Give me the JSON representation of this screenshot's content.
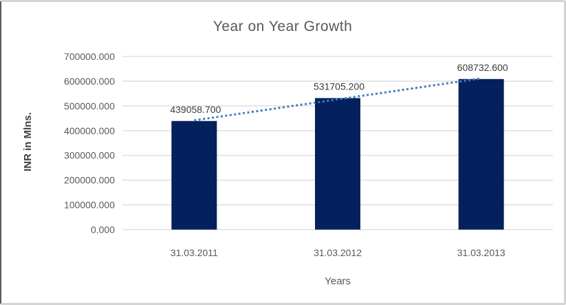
{
  "chart_data": {
    "type": "bar",
    "title": "Year on Year Growth",
    "xlabel": "Years",
    "ylabel": "INR in Mlns.",
    "categories": [
      "31.03.2011",
      "31.03.2012",
      "31.03.2013"
    ],
    "values": [
      439058.7,
      531705.2,
      608732.6
    ],
    "data_labels": [
      "439058.700",
      "531705.200",
      "608732.600"
    ],
    "ylim": [
      0,
      700000
    ],
    "ytick_step": 100000,
    "ytick_labels": [
      "0.000",
      "100000.000",
      "200000.000",
      "300000.000",
      "400000.000",
      "500000.000",
      "600000.000",
      "700000.000"
    ],
    "grid": true,
    "legend": "none",
    "trendline": {
      "type": "linear",
      "style": "dotted",
      "color": "#3e7dbe"
    },
    "colors": {
      "bar": "#04215e",
      "gridline": "#d9d9d9",
      "title": "#595959",
      "tick_label": "#595959",
      "data_label": "#3b3b3b",
      "axis_title_x": "#595959",
      "axis_title_y": "#404040",
      "background": "#ffffff"
    }
  }
}
